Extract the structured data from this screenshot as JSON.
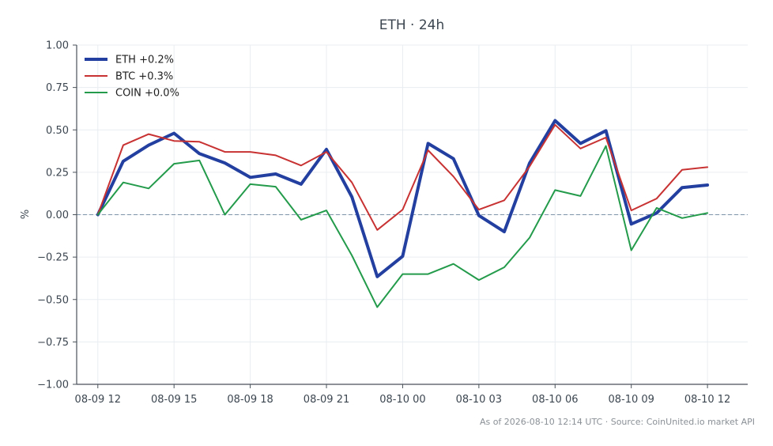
{
  "chart_data": {
    "type": "line",
    "title": "ETH · 24h",
    "xlabel": "",
    "ylabel": "%",
    "ylim": [
      -1.0,
      1.0
    ],
    "yticks": [
      1.0,
      0.75,
      0.5,
      0.25,
      0.0,
      -0.25,
      -0.5,
      -0.75,
      -1.0
    ],
    "ytick_labels": [
      "1.00",
      "0.75",
      "0.50",
      "0.25",
      "0.00",
      "−0.25",
      "−0.50",
      "−0.75",
      "−1.00"
    ],
    "xlim": [
      "08-09 11:10",
      "08-10 13:35"
    ],
    "xticks": [
      "08-09 12",
      "08-09 15",
      "08-09 18",
      "08-09 21",
      "08-10 00",
      "08-10 03",
      "08-10 06",
      "08-10 09",
      "08-10 12"
    ],
    "grid": true,
    "legend_position": "top-left",
    "zero_line": true,
    "x": [
      "08-09 12:00",
      "08-09 13:00",
      "08-09 14:00",
      "08-09 15:00",
      "08-09 16:00",
      "08-09 17:00",
      "08-09 18:00",
      "08-09 19:00",
      "08-09 20:00",
      "08-09 21:00",
      "08-09 22:00",
      "08-09 23:00",
      "08-10 00:00",
      "08-10 01:00",
      "08-10 02:00",
      "08-10 03:00",
      "08-10 04:00",
      "08-10 05:00",
      "08-10 06:00",
      "08-10 07:00",
      "08-10 08:00",
      "08-10 09:00",
      "08-10 10:00",
      "08-10 11:00",
      "08-10 12:00"
    ],
    "series": [
      {
        "name": "ETH +0.2%",
        "color": "#2340a0",
        "width": 4,
        "values": [
          0.0,
          0.315,
          0.41,
          0.48,
          0.36,
          0.305,
          0.22,
          0.24,
          0.18,
          0.385,
          0.105,
          -0.365,
          -0.245,
          0.42,
          0.33,
          -0.005,
          -0.1,
          0.305,
          0.555,
          0.42,
          0.495,
          -0.055,
          0.01,
          0.16,
          0.175
        ]
      },
      {
        "name": "BTC +0.3%",
        "color": "#c83232",
        "width": 2,
        "values": [
          0.0,
          0.41,
          0.475,
          0.435,
          0.43,
          0.37,
          0.37,
          0.35,
          0.29,
          0.37,
          0.19,
          -0.09,
          0.03,
          0.38,
          0.225,
          0.03,
          0.085,
          0.285,
          0.53,
          0.39,
          0.455,
          0.025,
          0.095,
          0.265,
          0.28
        ]
      },
      {
        "name": "COIN +0.0%",
        "color": "#239b4b",
        "width": 2,
        "values": [
          0.0,
          0.19,
          0.155,
          0.3,
          0.32,
          0.0,
          0.18,
          0.165,
          -0.03,
          0.025,
          -0.24,
          -0.545,
          -0.35,
          -0.35,
          -0.29,
          -0.385,
          -0.31,
          -0.135,
          0.145,
          0.11,
          0.405,
          -0.21,
          0.04,
          -0.02,
          0.01
        ]
      }
    ]
  },
  "footer_note": "As of 2026-08-10 12:14 UTC · Source: CoinUnited.io market API",
  "colors": {
    "grid": "#e9edf1",
    "axis": "#4a525a",
    "zero_line": "#7d93a8"
  }
}
